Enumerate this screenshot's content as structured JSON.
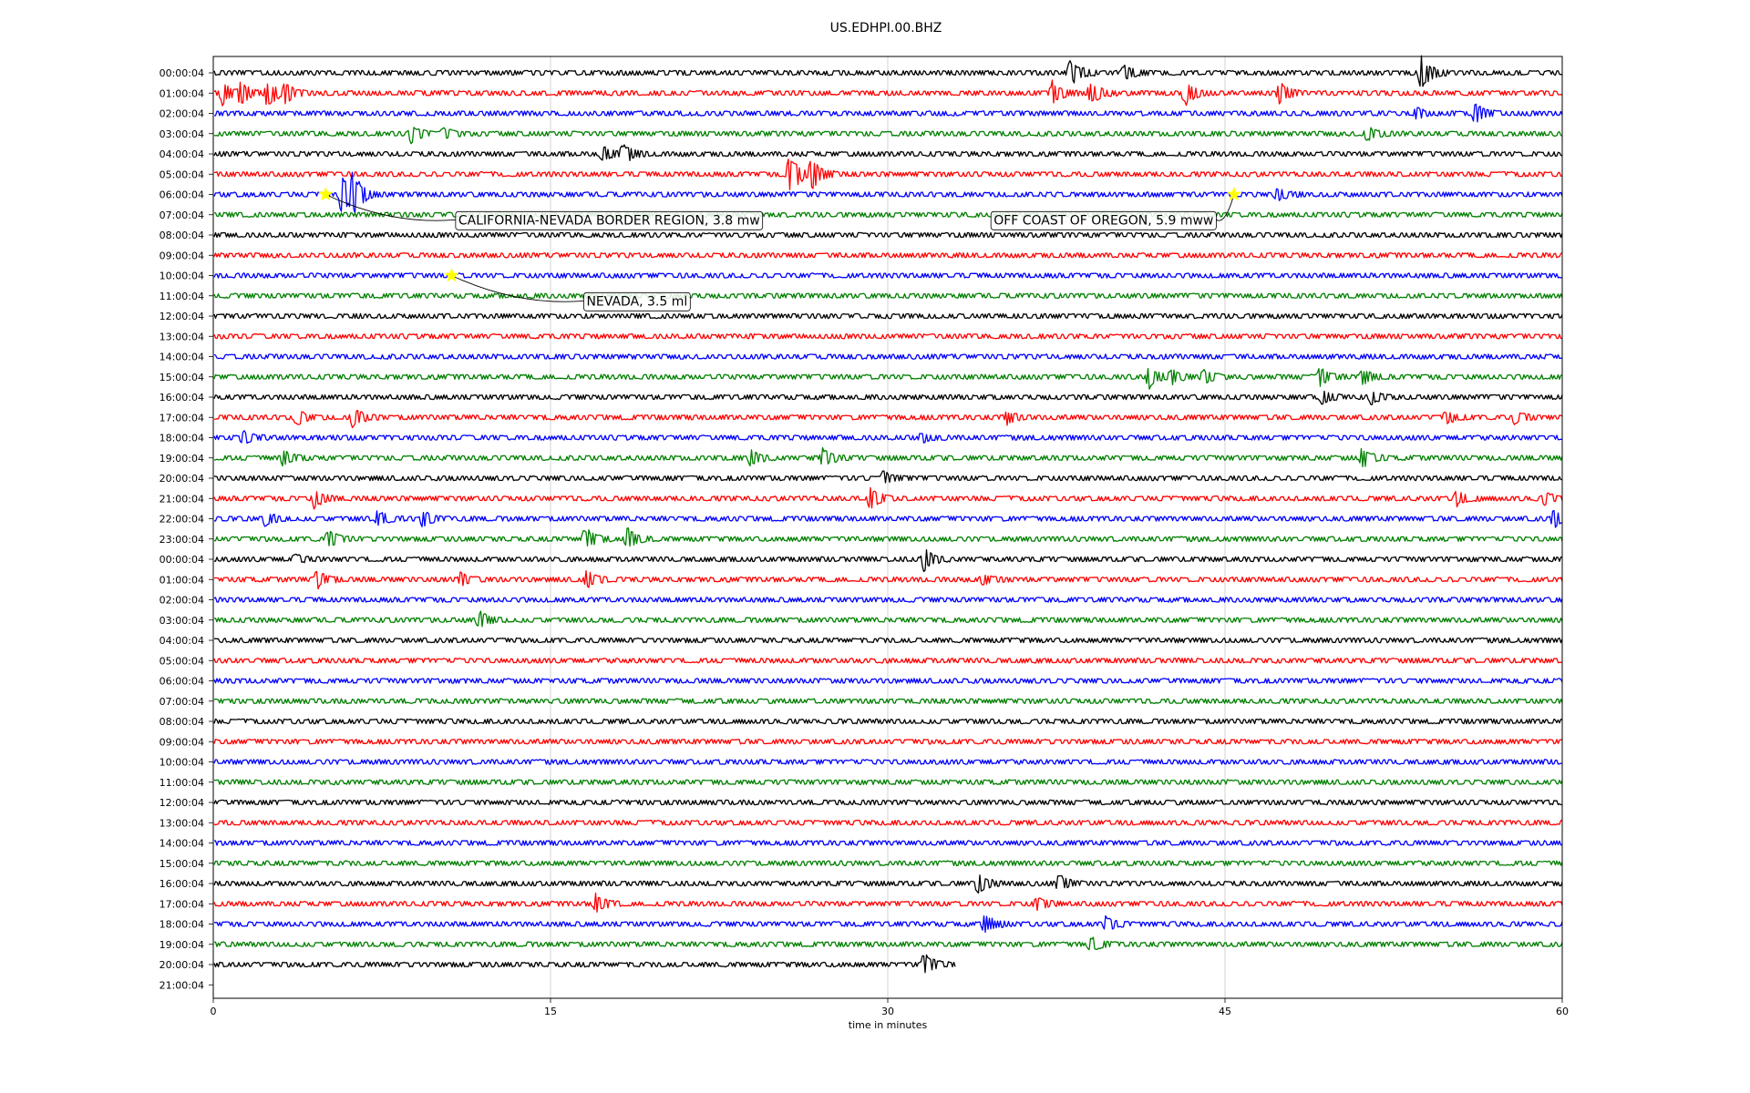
{
  "chart_data": {
    "type": "line",
    "title": "US.EDHPI.00.BHZ",
    "xlabel": "time in minutes",
    "xlim": [
      0,
      60
    ],
    "xticks": [
      "0",
      "15",
      "30",
      "45",
      "60"
    ],
    "x_grid_every": 15,
    "row_colors": [
      "#000000",
      "#ff0000",
      "#0000ff",
      "#008000"
    ],
    "rows": [
      "00:00:04",
      "01:00:04",
      "02:00:04",
      "03:00:04",
      "04:00:04",
      "05:00:04",
      "06:00:04",
      "07:00:04",
      "08:00:04",
      "09:00:04",
      "10:00:04",
      "11:00:04",
      "12:00:04",
      "13:00:04",
      "14:00:04",
      "15:00:04",
      "16:00:04",
      "17:00:04",
      "18:00:04",
      "19:00:04",
      "20:00:04",
      "21:00:04",
      "22:00:04",
      "23:00:04",
      "00:00:04",
      "01:00:04",
      "02:00:04",
      "03:00:04",
      "04:00:04",
      "05:00:04",
      "06:00:04",
      "07:00:04",
      "08:00:04",
      "09:00:04",
      "10:00:04",
      "11:00:04",
      "12:00:04",
      "13:00:04",
      "14:00:04",
      "15:00:04",
      "16:00:04",
      "17:00:04",
      "18:00:04",
      "19:00:04",
      "20:00:04",
      "21:00:04"
    ],
    "last_trace_end_minute": 33,
    "bursts": [
      {
        "row": 0,
        "minute": 38.1,
        "amp": 1.2
      },
      {
        "row": 0,
        "minute": 40.5,
        "amp": 0.6
      },
      {
        "row": 0,
        "minute": 53.7,
        "amp": 1.4
      },
      {
        "row": 1,
        "minute": 0.4,
        "amp": 0.9
      },
      {
        "row": 1,
        "minute": 1.2,
        "amp": 0.8
      },
      {
        "row": 1,
        "minute": 2.4,
        "amp": 1.1
      },
      {
        "row": 1,
        "minute": 3.2,
        "amp": 0.7
      },
      {
        "row": 1,
        "minute": 37.3,
        "amp": 0.9
      },
      {
        "row": 1,
        "minute": 39.0,
        "amp": 1.0
      },
      {
        "row": 1,
        "minute": 43.2,
        "amp": 1.0
      },
      {
        "row": 1,
        "minute": 47.4,
        "amp": 0.9
      },
      {
        "row": 2,
        "minute": 53.5,
        "amp": 0.4
      },
      {
        "row": 2,
        "minute": 56.1,
        "amp": 0.9
      },
      {
        "row": 3,
        "minute": 8.8,
        "amp": 0.7
      },
      {
        "row": 3,
        "minute": 10.2,
        "amp": 0.5
      },
      {
        "row": 3,
        "minute": 51.3,
        "amp": 0.6
      },
      {
        "row": 4,
        "minute": 17.3,
        "amp": 0.6
      },
      {
        "row": 4,
        "minute": 18.2,
        "amp": 0.8
      },
      {
        "row": 5,
        "minute": 25.6,
        "amp": 1.9
      },
      {
        "row": 5,
        "minute": 26.6,
        "amp": 1.4
      },
      {
        "row": 6,
        "minute": 5.7,
        "amp": 1.8
      },
      {
        "row": 6,
        "minute": 6.2,
        "amp": 1.4
      },
      {
        "row": 6,
        "minute": 47.3,
        "amp": 0.5
      },
      {
        "row": 15,
        "minute": 41.6,
        "amp": 0.9
      },
      {
        "row": 15,
        "minute": 42.6,
        "amp": 0.6
      },
      {
        "row": 15,
        "minute": 44.0,
        "amp": 0.6
      },
      {
        "row": 15,
        "minute": 49.2,
        "amp": 0.7
      },
      {
        "row": 15,
        "minute": 51.1,
        "amp": 0.6
      },
      {
        "row": 16,
        "minute": 49.3,
        "amp": 0.5
      },
      {
        "row": 16,
        "minute": 51.5,
        "amp": 0.5
      },
      {
        "row": 17,
        "minute": 3.7,
        "amp": 0.6
      },
      {
        "row": 17,
        "minute": 6.2,
        "amp": 0.8
      },
      {
        "row": 17,
        "minute": 35.3,
        "amp": 0.5
      },
      {
        "row": 17,
        "minute": 54.8,
        "amp": 0.5
      },
      {
        "row": 17,
        "minute": 57.9,
        "amp": 0.5
      },
      {
        "row": 18,
        "minute": 1.3,
        "amp": 0.5
      },
      {
        "row": 18,
        "minute": 31.5,
        "amp": 0.4
      },
      {
        "row": 19,
        "minute": 3.1,
        "amp": 0.6
      },
      {
        "row": 19,
        "minute": 23.9,
        "amp": 0.6
      },
      {
        "row": 19,
        "minute": 27.1,
        "amp": 0.7
      },
      {
        "row": 19,
        "minute": 51.1,
        "amp": 0.8
      },
      {
        "row": 20,
        "minute": 29.8,
        "amp": 0.5
      },
      {
        "row": 21,
        "minute": 4.5,
        "amp": 0.8
      },
      {
        "row": 21,
        "minute": 29.2,
        "amp": 0.9
      },
      {
        "row": 21,
        "minute": 55.3,
        "amp": 0.6
      },
      {
        "row": 21,
        "minute": 59.2,
        "amp": 0.5
      },
      {
        "row": 22,
        "minute": 2.3,
        "amp": 0.6
      },
      {
        "row": 22,
        "minute": 7.3,
        "amp": 0.6
      },
      {
        "row": 22,
        "minute": 9.3,
        "amp": 0.6
      },
      {
        "row": 22,
        "minute": 59.6,
        "amp": 0.7
      },
      {
        "row": 23,
        "minute": 5.1,
        "amp": 0.7
      },
      {
        "row": 23,
        "minute": 16.5,
        "amp": 1.0
      },
      {
        "row": 23,
        "minute": 18.4,
        "amp": 0.9
      },
      {
        "row": 24,
        "minute": 3.6,
        "amp": 0.4
      },
      {
        "row": 24,
        "minute": 31.6,
        "amp": 0.9
      },
      {
        "row": 25,
        "minute": 4.6,
        "amp": 0.7
      },
      {
        "row": 25,
        "minute": 11.0,
        "amp": 0.5
      },
      {
        "row": 25,
        "minute": 16.6,
        "amp": 0.7
      },
      {
        "row": 25,
        "minute": 34.2,
        "amp": 0.5
      },
      {
        "row": 27,
        "minute": 11.8,
        "amp": 0.7
      },
      {
        "row": 40,
        "minute": 34.0,
        "amp": 0.8
      },
      {
        "row": 40,
        "minute": 37.6,
        "amp": 0.7
      },
      {
        "row": 41,
        "minute": 17.0,
        "amp": 0.8
      },
      {
        "row": 41,
        "minute": 36.6,
        "amp": 0.5
      },
      {
        "row": 42,
        "minute": 34.3,
        "amp": 0.8
      },
      {
        "row": 42,
        "minute": 39.7,
        "amp": 0.6
      },
      {
        "row": 43,
        "minute": 39.0,
        "amp": 0.6
      },
      {
        "row": 44,
        "minute": 31.6,
        "amp": 0.9
      }
    ],
    "events": [
      {
        "label": "CALIFORNIA-NEVADA BORDER REGION, 3.8 mw",
        "row": 6,
        "minute": 5.0,
        "label_minute": 10.9,
        "label_row": 7.25,
        "label_anchor": "start"
      },
      {
        "label": "OFF COAST OF OREGON, 5.9 mww",
        "row": 6,
        "minute": 45.4,
        "label_minute": 39.6,
        "label_row": 7.25,
        "label_anchor": "middle"
      },
      {
        "label": "NEVADA, 3.5 ml",
        "row": 10,
        "minute": 10.6,
        "label_minute": 16.6,
        "label_row": 11.25,
        "label_anchor": "start"
      }
    ]
  }
}
